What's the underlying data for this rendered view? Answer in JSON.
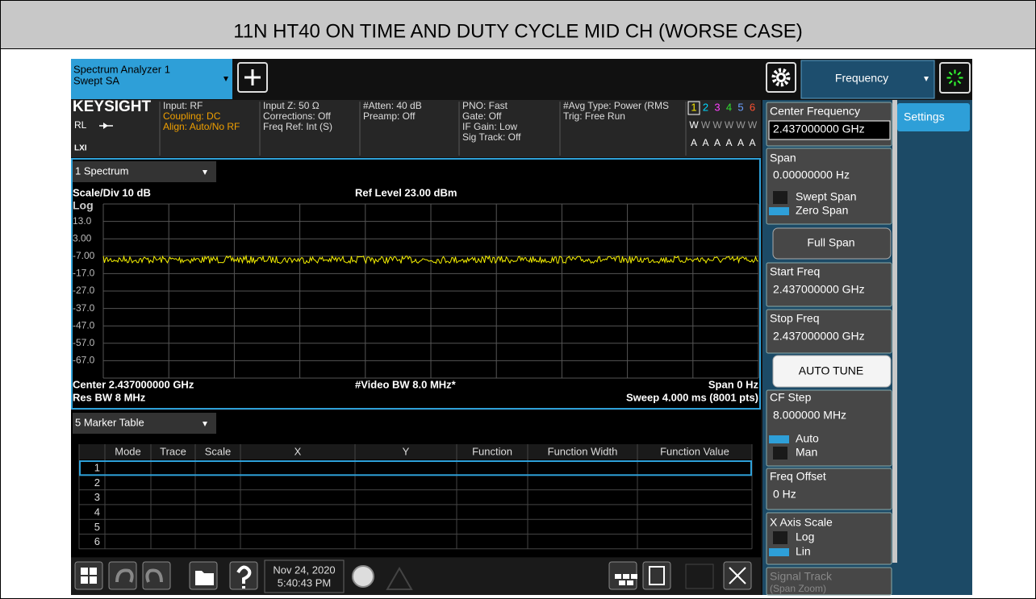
{
  "title": "11N HT40 ON TIME AND DUTY CYCLE MID CH (WORSE CASE)",
  "tab": {
    "line1": "Spectrum Analyzer 1",
    "line2": "Swept SA"
  },
  "menu_title": "Frequency",
  "side_tab": "Settings",
  "info": {
    "brand": "KEYSIGHT",
    "rl": "RL",
    "lxi": "LXI",
    "col1": [
      "Input: RF",
      "Coupling: DC",
      "Align: Auto/No RF"
    ],
    "col2": [
      "Input Z: 50 Ω",
      "Corrections: Off",
      "Freq Ref: Int (S)"
    ],
    "col3": [
      "#Atten: 40 dB",
      "Preamp: Off"
    ],
    "col4": [
      "PNO: Fast",
      "Gate: Off",
      "IF Gain: Low",
      "Sig Track: Off"
    ],
    "col5": [
      "#Avg Type: Power (RMS",
      "Trig: Free Run"
    ],
    "traces": [
      "1",
      "2",
      "3",
      "4",
      "5",
      "6"
    ],
    "trace_colors": [
      "#f5e600",
      "#00d8ff",
      "#ff40ff",
      "#30e030",
      "#6aa0ff",
      "#ff5030"
    ],
    "trace_types": [
      "W",
      "W",
      "W",
      "W",
      "W",
      "W"
    ],
    "trace_detectors": [
      "A",
      "A",
      "A",
      "A",
      "A",
      "A"
    ]
  },
  "spectrum": {
    "window": "1 Spectrum",
    "scale": "Scale/Div 10 dB",
    "ref": "Ref Level 23.00 dBm",
    "log": "Log",
    "ytick_labels": [
      "13.0",
      "3.00",
      "-7.00",
      "-17.0",
      "-27.0",
      "-37.0",
      "-47.0",
      "-57.0",
      "-67.0"
    ],
    "center": "Center 2.437000000 GHz",
    "vbw": "#Video BW 8.0 MHz*",
    "span": "Span 0 Hz",
    "rbw": "Res BW 8 MHz",
    "sweep": "Sweep 4.000 ms (8001 pts)"
  },
  "marker_table": {
    "window": "5 Marker Table",
    "headers": [
      "Mode",
      "Trace",
      "Scale",
      "X",
      "Y",
      "Function",
      "Function Width",
      "Function Value"
    ],
    "rows": [
      "1",
      "2",
      "3",
      "4",
      "5",
      "6"
    ]
  },
  "taskbar": {
    "date": "Nov 24, 2020",
    "time": "5:40:43 PM"
  },
  "panel": {
    "center_label": "Center Frequency",
    "center_value": "2.437000000 GHz",
    "span_label": "Span",
    "span_value": "0.00000000 Hz",
    "swept_span": "Swept Span",
    "zero_span": "Zero Span",
    "full_span": "Full Span",
    "start_label": "Start Freq",
    "start_value": "2.437000000 GHz",
    "stop_label": "Stop Freq",
    "stop_value": "2.437000000 GHz",
    "auto_tune": "AUTO TUNE",
    "cf_label": "CF Step",
    "cf_value": "8.000000 MHz",
    "cf_auto": "Auto",
    "cf_man": "Man",
    "offset_label": "Freq Offset",
    "offset_value": "0 Hz",
    "xscale_label": "X Axis Scale",
    "xscale_log": "Log",
    "xscale_lin": "Lin",
    "track_label": "Signal Track",
    "track_sub": "(Span Zoom)"
  }
}
